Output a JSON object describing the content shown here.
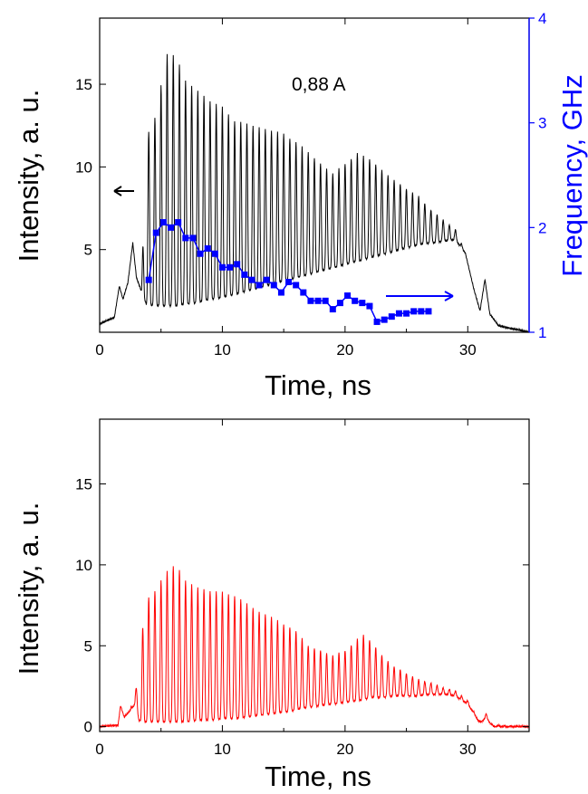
{
  "chart_data": [
    {
      "type": "line",
      "title": "",
      "annotation": "0,88 A",
      "xlabel": "Time, ns",
      "ylabel": "Intensity, a. u.",
      "y2label": "Frequency, GHz",
      "xlim": [
        0,
        35
      ],
      "ylim": [
        0,
        19
      ],
      "y2lim": [
        1,
        4
      ],
      "xticks": [
        0,
        10,
        20,
        30
      ],
      "yticks": [
        5,
        10,
        15
      ],
      "y2ticks": [
        1,
        2,
        3,
        4
      ],
      "grid": false,
      "colors": {
        "intensity": "#000000",
        "frequency": "#0000ff"
      },
      "arrows": [
        {
          "points_to": "left-axis",
          "color": "#000000"
        },
        {
          "points_to": "right-axis",
          "color": "#0000ff"
        }
      ],
      "intensity_envelope": {
        "t": [
          0,
          1.2,
          1.6,
          1.9,
          2.3,
          2.7,
          3.0,
          3.4,
          3.8,
          4.5,
          5.5,
          6.2,
          7.0,
          8.0,
          9.0,
          10.0,
          11.0,
          12.0,
          13.0,
          14.0,
          15.0,
          16.0,
          17.0,
          18.0,
          19.0,
          20.0,
          21.0,
          22.0,
          23.0,
          24.0,
          25.0,
          26.0,
          27.0,
          28.0,
          29.0,
          29.8,
          30.5,
          31.0,
          31.4,
          31.8,
          32.5,
          35.0
        ],
        "peak": [
          0.5,
          0.9,
          2.8,
          2.0,
          3.0,
          5.4,
          3.3,
          2.5,
          11.8,
          13.0,
          16.8,
          16.8,
          15.2,
          14.6,
          14.0,
          13.6,
          12.8,
          12.6,
          12.4,
          12.2,
          12.0,
          11.5,
          10.9,
          10.2,
          9.6,
          10.2,
          10.8,
          10.5,
          9.8,
          9.2,
          8.7,
          8.2,
          7.4,
          6.8,
          6.2,
          4.8,
          2.6,
          1.3,
          3.2,
          1.1,
          0.4,
          0.0
        ],
        "trough": [
          0.5,
          0.9,
          2.8,
          2.0,
          3.0,
          5.4,
          3.3,
          2.5,
          1.7,
          1.6,
          1.6,
          1.6,
          1.7,
          1.8,
          2.0,
          2.1,
          2.3,
          2.5,
          2.7,
          2.9,
          3.1,
          3.3,
          3.5,
          3.7,
          3.9,
          4.1,
          4.3,
          4.5,
          4.7,
          4.9,
          5.1,
          5.3,
          5.4,
          5.5,
          5.6,
          4.8,
          2.6,
          1.3,
          3.2,
          1.1,
          0.4,
          0.0
        ],
        "period_ns": 0.5
      },
      "frequency": {
        "t": [
          4.0,
          4.6,
          5.2,
          5.8,
          6.4,
          7.0,
          7.6,
          8.2,
          8.8,
          9.4,
          10.0,
          10.6,
          11.2,
          11.8,
          12.4,
          13.0,
          13.6,
          14.2,
          14.8,
          15.4,
          16.0,
          16.6,
          17.2,
          17.8,
          18.4,
          19.0,
          19.6,
          20.2,
          20.8,
          21.4,
          22.0,
          22.6,
          23.2,
          23.8,
          24.4,
          25.0,
          25.6,
          26.2,
          26.8
        ],
        "GHz": [
          1.5,
          1.95,
          2.05,
          2.0,
          2.05,
          1.9,
          1.9,
          1.75,
          1.8,
          1.75,
          1.62,
          1.62,
          1.65,
          1.55,
          1.5,
          1.45,
          1.5,
          1.45,
          1.38,
          1.48,
          1.45,
          1.38,
          1.3,
          1.3,
          1.3,
          1.22,
          1.28,
          1.35,
          1.3,
          1.28,
          1.25,
          1.1,
          1.12,
          1.15,
          1.18,
          1.18,
          1.2,
          1.2,
          1.2
        ]
      }
    },
    {
      "type": "line",
      "title": "",
      "xlabel": "Time, ns",
      "ylabel": "Intensity, a. u.",
      "xlim": [
        0,
        35
      ],
      "ylim": [
        -0.3,
        19
      ],
      "xticks": [
        0,
        10,
        20,
        30
      ],
      "yticks": [
        0,
        5,
        10,
        15
      ],
      "grid": false,
      "colors": {
        "intensity": "#ff0000"
      },
      "intensity_envelope": {
        "t": [
          0,
          1.5,
          1.7,
          2.0,
          2.5,
          2.9,
          3.2,
          3.6,
          4.5,
          5.5,
          6.2,
          7.0,
          8.0,
          9.0,
          10.0,
          11.0,
          12.0,
          13.0,
          14.0,
          15.0,
          15.8,
          16.3,
          17.0,
          18.0,
          19.0,
          20.0,
          21.0,
          21.6,
          22.2,
          23.0,
          24.0,
          25.0,
          26.0,
          27.0,
          28.0,
          29.0,
          30.0,
          30.5,
          31.0,
          31.5,
          32.0,
          35.0
        ],
        "peak": [
          0.0,
          0.1,
          1.3,
          0.6,
          1.0,
          3.0,
          1.0,
          7.7,
          8.4,
          9.6,
          10.1,
          9.0,
          8.6,
          8.4,
          8.3,
          8.1,
          7.6,
          7.1,
          6.8,
          6.3,
          6.1,
          5.6,
          5.0,
          4.7,
          4.4,
          4.7,
          5.4,
          5.7,
          5.2,
          4.4,
          3.7,
          3.3,
          2.9,
          2.7,
          2.4,
          2.2,
          1.6,
          0.9,
          0.3,
          0.8,
          0.1,
          0.0
        ],
        "trough": [
          0.0,
          0.1,
          1.3,
          0.6,
          1.0,
          1.4,
          0.4,
          0.3,
          0.3,
          0.3,
          0.3,
          0.3,
          0.4,
          0.4,
          0.5,
          0.5,
          0.6,
          0.7,
          0.8,
          0.9,
          1.0,
          1.1,
          1.2,
          1.3,
          1.4,
          1.5,
          1.6,
          1.7,
          1.8,
          1.8,
          1.9,
          1.9,
          1.9,
          2.0,
          2.0,
          1.9,
          1.4,
          0.8,
          0.2,
          0.6,
          0.0,
          0.0
        ],
        "period_ns": 0.5
      }
    }
  ]
}
